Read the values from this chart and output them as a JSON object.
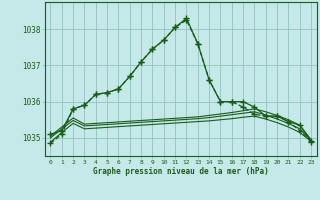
{
  "background_color": "#c5e8e8",
  "grid_color": "#8ababa",
  "line_color": "#1a5c1a",
  "xlabel": "Graphe pression niveau de la mer (hPa)",
  "x_ticks": [
    0,
    1,
    2,
    3,
    4,
    5,
    6,
    7,
    8,
    9,
    10,
    11,
    12,
    13,
    14,
    15,
    16,
    17,
    18,
    19,
    20,
    21,
    22,
    23
  ],
  "ylim": [
    1034.5,
    1038.75
  ],
  "yticks": [
    1035,
    1036,
    1037,
    1038
  ],
  "line1_dashed": [
    1034.85,
    1035.1,
    1035.8,
    1035.9,
    1036.2,
    1036.25,
    1036.35,
    1036.7,
    1037.1,
    1037.45,
    1037.7,
    1038.05,
    1038.25,
    1037.6,
    1036.6,
    1036.0,
    1036.0,
    1035.85,
    1035.65,
    1035.6,
    1035.6,
    1035.45,
    1035.2,
    1034.9
  ],
  "line2_solid": [
    1035.1,
    1035.2,
    1035.8,
    1035.9,
    1036.2,
    1036.25,
    1036.35,
    1036.7,
    1037.1,
    1037.45,
    1037.7,
    1038.05,
    1038.3,
    1037.6,
    1036.6,
    1036.0,
    1036.0,
    1036.0,
    1035.85,
    1035.6,
    1035.6,
    1035.45,
    1035.35,
    1034.92
  ],
  "line3_flat": [
    1035.05,
    1035.3,
    1035.55,
    1035.38,
    1035.4,
    1035.42,
    1035.44,
    1035.46,
    1035.48,
    1035.5,
    1035.52,
    1035.54,
    1035.56,
    1035.58,
    1035.62,
    1035.66,
    1035.7,
    1035.75,
    1035.8,
    1035.72,
    1035.62,
    1035.5,
    1035.35,
    1034.95
  ],
  "line4_flat": [
    1035.0,
    1035.25,
    1035.48,
    1035.33,
    1035.35,
    1035.37,
    1035.39,
    1035.41,
    1035.43,
    1035.45,
    1035.47,
    1035.49,
    1035.51,
    1035.53,
    1035.56,
    1035.6,
    1035.64,
    1035.68,
    1035.72,
    1035.63,
    1035.52,
    1035.4,
    1035.25,
    1034.93
  ],
  "line5_flat": [
    1034.88,
    1035.15,
    1035.4,
    1035.25,
    1035.27,
    1035.29,
    1035.31,
    1035.33,
    1035.35,
    1035.37,
    1035.39,
    1035.41,
    1035.43,
    1035.45,
    1035.47,
    1035.5,
    1035.53,
    1035.57,
    1035.6,
    1035.52,
    1035.42,
    1035.3,
    1035.15,
    1034.9
  ]
}
